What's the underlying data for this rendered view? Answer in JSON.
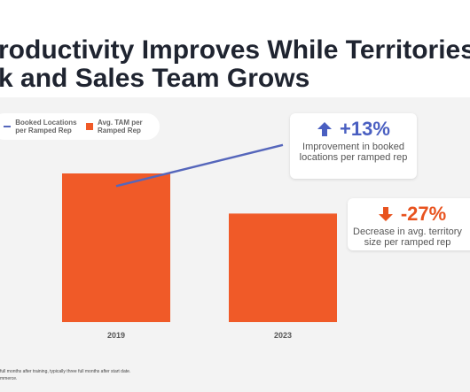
{
  "chart_data": {
    "type": "bar",
    "title_lines": [
      "roductivity Improves While Territories",
      "k and Sales Team Grows"
    ],
    "categories": [
      "2019",
      "2023"
    ],
    "series": [
      {
        "name": "Booked Locations per Ramped Rep",
        "type": "line",
        "color": "#5566bb",
        "values": [
          100,
          113
        ],
        "axis": "y2"
      },
      {
        "name": "Avg. TAM per Ramped Rep",
        "type": "bar",
        "color": "#f05a28",
        "values": [
          100,
          73
        ]
      }
    ],
    "ylim": [
      0,
      100
    ],
    "y2lim": [
      57,
      104
    ],
    "grid": false,
    "annotations": [
      {
        "title": "+13%",
        "text": "Improvement in booked locations per ramped rep",
        "color": "#4a5fc1"
      },
      {
        "title": "-27%",
        "text": "Decrease in avg. territory size per ramped rep",
        "color": "#e8531f"
      }
    ],
    "footnotes": [
      "full months after training, typically three full months after start date.",
      "mmerce."
    ]
  }
}
